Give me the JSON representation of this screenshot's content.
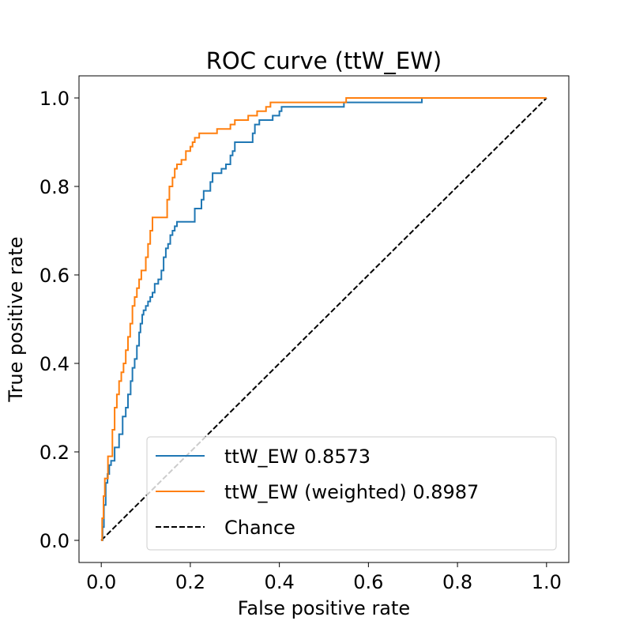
{
  "chart_data": {
    "type": "line",
    "title": "ROC curve (ttW_EW)",
    "xlabel": "False positive rate",
    "ylabel": "True positive rate",
    "xlim": [
      -0.05,
      1.05
    ],
    "ylim": [
      -0.05,
      1.05
    ],
    "xticks": [
      0.0,
      0.2,
      0.4,
      0.6,
      0.8,
      1.0
    ],
    "xtick_labels": [
      "0.0",
      "0.2",
      "0.4",
      "0.6",
      "0.8",
      "1.0"
    ],
    "yticks": [
      0.0,
      0.2,
      0.4,
      0.6,
      0.8,
      1.0
    ],
    "ytick_labels": [
      "0.0",
      "0.2",
      "0.4",
      "0.6",
      "0.8",
      "1.0"
    ],
    "grid": false,
    "legend_position": "lower-right",
    "series": [
      {
        "name": "ttW_EW 0.8573",
        "color": "#1f77b4",
        "style": "solid",
        "x": [
          0.0,
          0.003,
          0.003,
          0.006,
          0.006,
          0.01,
          0.01,
          0.014,
          0.014,
          0.018,
          0.018,
          0.022,
          0.022,
          0.03,
          0.03,
          0.04,
          0.04,
          0.048,
          0.048,
          0.055,
          0.055,
          0.06,
          0.06,
          0.066,
          0.066,
          0.07,
          0.07,
          0.075,
          0.075,
          0.08,
          0.08,
          0.085,
          0.085,
          0.088,
          0.088,
          0.092,
          0.092,
          0.095,
          0.095,
          0.1,
          0.1,
          0.105,
          0.105,
          0.11,
          0.11,
          0.115,
          0.115,
          0.12,
          0.12,
          0.128,
          0.128,
          0.135,
          0.135,
          0.14,
          0.14,
          0.145,
          0.145,
          0.15,
          0.15,
          0.155,
          0.155,
          0.16,
          0.16,
          0.165,
          0.165,
          0.17,
          0.17,
          0.21,
          0.21,
          0.225,
          0.225,
          0.23,
          0.23,
          0.245,
          0.245,
          0.25,
          0.25,
          0.27,
          0.27,
          0.28,
          0.28,
          0.29,
          0.29,
          0.295,
          0.295,
          0.3,
          0.3,
          0.34,
          0.34,
          0.345,
          0.345,
          0.355,
          0.355,
          0.385,
          0.385,
          0.4,
          0.4,
          0.405,
          0.405,
          0.545,
          0.545,
          0.72,
          0.72,
          1.0
        ],
        "y": [
          0.0,
          0.0,
          0.03,
          0.03,
          0.08,
          0.08,
          0.13,
          0.13,
          0.15,
          0.15,
          0.17,
          0.17,
          0.18,
          0.18,
          0.21,
          0.21,
          0.24,
          0.24,
          0.28,
          0.28,
          0.3,
          0.3,
          0.33,
          0.33,
          0.36,
          0.36,
          0.39,
          0.39,
          0.41,
          0.41,
          0.44,
          0.44,
          0.47,
          0.47,
          0.49,
          0.49,
          0.51,
          0.51,
          0.52,
          0.52,
          0.53,
          0.53,
          0.54,
          0.54,
          0.55,
          0.55,
          0.56,
          0.56,
          0.58,
          0.58,
          0.59,
          0.59,
          0.61,
          0.61,
          0.64,
          0.64,
          0.66,
          0.66,
          0.67,
          0.67,
          0.69,
          0.69,
          0.7,
          0.7,
          0.71,
          0.71,
          0.72,
          0.72,
          0.75,
          0.75,
          0.77,
          0.77,
          0.79,
          0.79,
          0.81,
          0.81,
          0.83,
          0.83,
          0.84,
          0.84,
          0.85,
          0.85,
          0.87,
          0.87,
          0.88,
          0.88,
          0.9,
          0.9,
          0.92,
          0.92,
          0.94,
          0.94,
          0.95,
          0.95,
          0.96,
          0.96,
          0.97,
          0.97,
          0.98,
          0.98,
          0.99,
          0.99,
          1.0,
          1.0
        ]
      },
      {
        "name": "ttW_EW (weighted) 0.8987",
        "color": "#ff7f0e",
        "style": "solid",
        "x": [
          0.0,
          0.002,
          0.002,
          0.005,
          0.005,
          0.008,
          0.008,
          0.015,
          0.015,
          0.025,
          0.025,
          0.03,
          0.03,
          0.035,
          0.035,
          0.04,
          0.04,
          0.045,
          0.045,
          0.05,
          0.05,
          0.055,
          0.055,
          0.06,
          0.06,
          0.065,
          0.065,
          0.07,
          0.07,
          0.075,
          0.075,
          0.08,
          0.08,
          0.085,
          0.085,
          0.09,
          0.09,
          0.1,
          0.1,
          0.105,
          0.105,
          0.11,
          0.11,
          0.115,
          0.115,
          0.148,
          0.148,
          0.153,
          0.153,
          0.16,
          0.16,
          0.165,
          0.165,
          0.17,
          0.17,
          0.18,
          0.18,
          0.19,
          0.19,
          0.2,
          0.2,
          0.205,
          0.205,
          0.21,
          0.21,
          0.22,
          0.22,
          0.26,
          0.26,
          0.29,
          0.29,
          0.3,
          0.3,
          0.33,
          0.33,
          0.35,
          0.35,
          0.37,
          0.37,
          0.38,
          0.38,
          0.55,
          0.55,
          1.0
        ],
        "y": [
          0.0,
          0.0,
          0.05,
          0.05,
          0.1,
          0.1,
          0.14,
          0.14,
          0.19,
          0.19,
          0.25,
          0.25,
          0.3,
          0.3,
          0.33,
          0.33,
          0.36,
          0.36,
          0.38,
          0.38,
          0.4,
          0.4,
          0.43,
          0.43,
          0.46,
          0.46,
          0.49,
          0.49,
          0.53,
          0.53,
          0.55,
          0.55,
          0.57,
          0.57,
          0.59,
          0.59,
          0.61,
          0.61,
          0.64,
          0.64,
          0.67,
          0.67,
          0.7,
          0.7,
          0.73,
          0.73,
          0.77,
          0.77,
          0.8,
          0.8,
          0.82,
          0.82,
          0.84,
          0.84,
          0.85,
          0.85,
          0.86,
          0.86,
          0.88,
          0.88,
          0.89,
          0.89,
          0.9,
          0.9,
          0.91,
          0.91,
          0.92,
          0.92,
          0.93,
          0.93,
          0.94,
          0.94,
          0.95,
          0.95,
          0.96,
          0.96,
          0.97,
          0.97,
          0.98,
          0.98,
          0.99,
          0.99,
          1.0,
          1.0
        ]
      },
      {
        "name": "Chance",
        "color": "#000000",
        "style": "dashed",
        "x": [
          0.0,
          1.0
        ],
        "y": [
          0.0,
          1.0
        ]
      }
    ]
  }
}
